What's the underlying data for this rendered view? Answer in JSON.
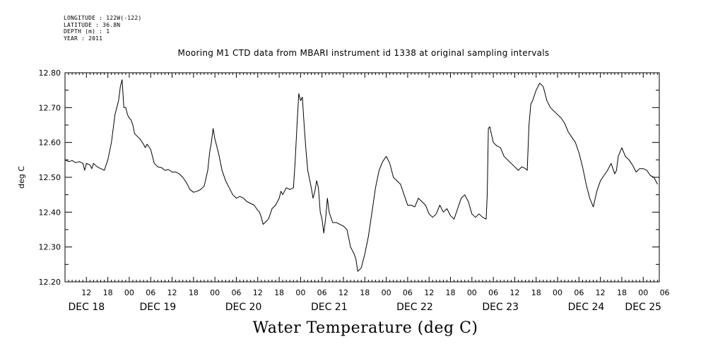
{
  "header": {
    "longitude": "LONGITUDE : 122W(-122)",
    "latitude": "LATITUDE : 36.8N",
    "depth": "DEPTH (m) : 1",
    "year": "YEAR : 2011"
  },
  "chart_data": {
    "type": "line",
    "title": "Mooring M1 CTD data from MBARI instrument id 1338 at original sampling intervals",
    "xlabel": "Water Temperature (deg C)",
    "ylabel": "deg C",
    "ylim": [
      12.2,
      12.8
    ],
    "xlim": [
      6,
      172.5
    ],
    "y_ticks": [
      "12.20",
      "12.30",
      "12.40",
      "12.50",
      "12.60",
      "12.70",
      "12.80"
    ],
    "hour_ticks": [
      {
        "h": 12,
        "label": "12"
      },
      {
        "h": 18,
        "label": "18"
      },
      {
        "h": 24,
        "label": "00"
      },
      {
        "h": 30,
        "label": "06"
      },
      {
        "h": 36,
        "label": "12"
      },
      {
        "h": 42,
        "label": "18"
      },
      {
        "h": 48,
        "label": "00"
      },
      {
        "h": 54,
        "label": "06"
      },
      {
        "h": 60,
        "label": "12"
      },
      {
        "h": 66,
        "label": "18"
      },
      {
        "h": 72,
        "label": "00"
      },
      {
        "h": 78,
        "label": "06"
      },
      {
        "h": 84,
        "label": "12"
      },
      {
        "h": 90,
        "label": "18"
      },
      {
        "h": 96,
        "label": "00"
      },
      {
        "h": 102,
        "label": "06"
      },
      {
        "h": 108,
        "label": "12"
      },
      {
        "h": 114,
        "label": "18"
      },
      {
        "h": 120,
        "label": "00"
      },
      {
        "h": 126,
        "label": "06"
      },
      {
        "h": 132,
        "label": "12"
      },
      {
        "h": 138,
        "label": "18"
      },
      {
        "h": 144,
        "label": "00"
      },
      {
        "h": 150,
        "label": "06"
      },
      {
        "h": 156,
        "label": "12"
      },
      {
        "h": 162,
        "label": "18"
      },
      {
        "h": 168,
        "label": "00"
      },
      {
        "h": 174,
        "label": "06"
      }
    ],
    "date_labels": [
      {
        "h": 12,
        "label": "DEC 18"
      },
      {
        "h": 32,
        "label": "DEC 19"
      },
      {
        "h": 56,
        "label": "DEC 20"
      },
      {
        "h": 80,
        "label": "DEC 21"
      },
      {
        "h": 104,
        "label": "DEC 22"
      },
      {
        "h": 128,
        "label": "DEC 23"
      },
      {
        "h": 152,
        "label": "DEC 24"
      },
      {
        "h": 168,
        "label": "DEC 25"
      }
    ],
    "series": [
      {
        "points": [
          [
            6.0,
            12.55
          ],
          [
            7.0,
            12.545
          ],
          [
            8.0,
            12.548
          ],
          [
            9.0,
            12.542
          ],
          [
            10.0,
            12.545
          ],
          [
            11.0,
            12.54
          ],
          [
            11.5,
            12.52
          ],
          [
            12.0,
            12.54
          ],
          [
            13.0,
            12.535
          ],
          [
            13.5,
            12.525
          ],
          [
            14.0,
            12.54
          ],
          [
            15.0,
            12.53
          ],
          [
            16.0,
            12.525
          ],
          [
            17.0,
            12.52
          ],
          [
            18.0,
            12.55
          ],
          [
            19.0,
            12.6
          ],
          [
            20.0,
            12.68
          ],
          [
            21.0,
            12.72
          ],
          [
            21.5,
            12.76
          ],
          [
            22.0,
            12.78
          ],
          [
            22.5,
            12.7
          ],
          [
            23.0,
            12.7
          ],
          [
            23.5,
            12.68
          ],
          [
            24.0,
            12.67
          ],
          [
            24.5,
            12.665
          ],
          [
            25.0,
            12.65
          ],
          [
            25.5,
            12.625
          ],
          [
            26.0,
            12.62
          ],
          [
            27.0,
            12.61
          ],
          [
            28.0,
            12.595
          ],
          [
            28.5,
            12.585
          ],
          [
            29.0,
            12.595
          ],
          [
            30.0,
            12.58
          ],
          [
            31.0,
            12.54
          ],
          [
            32.0,
            12.53
          ],
          [
            33.0,
            12.528
          ],
          [
            34.0,
            12.52
          ],
          [
            35.0,
            12.522
          ],
          [
            36.0,
            12.515
          ],
          [
            37.0,
            12.515
          ],
          [
            38.0,
            12.51
          ],
          [
            39.0,
            12.5
          ],
          [
            40.0,
            12.485
          ],
          [
            41.0,
            12.465
          ],
          [
            42.0,
            12.457
          ],
          [
            43.0,
            12.46
          ],
          [
            44.0,
            12.465
          ],
          [
            45.0,
            12.475
          ],
          [
            46.0,
            12.52
          ],
          [
            46.5,
            12.57
          ],
          [
            47.0,
            12.6
          ],
          [
            47.5,
            12.64
          ],
          [
            48.0,
            12.61
          ],
          [
            49.0,
            12.57
          ],
          [
            50.0,
            12.52
          ],
          [
            51.0,
            12.49
          ],
          [
            52.0,
            12.47
          ],
          [
            53.0,
            12.45
          ],
          [
            54.0,
            12.44
          ],
          [
            55.0,
            12.445
          ],
          [
            56.0,
            12.44
          ],
          [
            57.0,
            12.43
          ],
          [
            58.0,
            12.425
          ],
          [
            59.0,
            12.42
          ],
          [
            60.0,
            12.405
          ],
          [
            60.5,
            12.4
          ],
          [
            61.0,
            12.385
          ],
          [
            61.5,
            12.365
          ],
          [
            62.0,
            12.37
          ],
          [
            63.0,
            12.38
          ],
          [
            64.0,
            12.41
          ],
          [
            65.0,
            12.42
          ],
          [
            66.0,
            12.44
          ],
          [
            66.5,
            12.46
          ],
          [
            67.0,
            12.45
          ],
          [
            68.0,
            12.47
          ],
          [
            69.0,
            12.465
          ],
          [
            70.0,
            12.47
          ],
          [
            70.5,
            12.55
          ],
          [
            71.0,
            12.65
          ],
          [
            71.5,
            12.74
          ],
          [
            72.0,
            12.72
          ],
          [
            72.5,
            12.73
          ],
          [
            73.0,
            12.65
          ],
          [
            73.5,
            12.58
          ],
          [
            74.0,
            12.52
          ],
          [
            75.0,
            12.47
          ],
          [
            75.5,
            12.44
          ],
          [
            76.0,
            12.46
          ],
          [
            76.5,
            12.49
          ],
          [
            77.0,
            12.47
          ],
          [
            77.5,
            12.4
          ],
          [
            78.0,
            12.38
          ],
          [
            78.5,
            12.34
          ],
          [
            79.0,
            12.38
          ],
          [
            79.5,
            12.44
          ],
          [
            80.0,
            12.4
          ],
          [
            81.0,
            12.37
          ],
          [
            82.0,
            12.37
          ],
          [
            83.0,
            12.365
          ],
          [
            84.0,
            12.36
          ],
          [
            85.0,
            12.35
          ],
          [
            86.0,
            12.3
          ],
          [
            87.0,
            12.28
          ],
          [
            87.5,
            12.265
          ],
          [
            88.0,
            12.23
          ],
          [
            89.0,
            12.24
          ],
          [
            90.0,
            12.28
          ],
          [
            91.0,
            12.33
          ],
          [
            92.0,
            12.4
          ],
          [
            93.0,
            12.47
          ],
          [
            94.0,
            12.52
          ],
          [
            95.0,
            12.545
          ],
          [
            96.0,
            12.56
          ],
          [
            97.0,
            12.54
          ],
          [
            98.0,
            12.5
          ],
          [
            99.0,
            12.49
          ],
          [
            100.0,
            12.48
          ],
          [
            101.0,
            12.45
          ],
          [
            102.0,
            12.42
          ],
          [
            103.0,
            12.42
          ],
          [
            104.0,
            12.415
          ],
          [
            105.0,
            12.44
          ],
          [
            106.0,
            12.43
          ],
          [
            107.0,
            12.42
          ],
          [
            108.0,
            12.395
          ],
          [
            109.0,
            12.385
          ],
          [
            110.0,
            12.395
          ],
          [
            111.0,
            12.42
          ],
          [
            112.0,
            12.4
          ],
          [
            113.0,
            12.41
          ],
          [
            114.0,
            12.39
          ],
          [
            115.0,
            12.38
          ],
          [
            116.0,
            12.41
          ],
          [
            117.0,
            12.44
          ],
          [
            118.0,
            12.45
          ],
          [
            119.0,
            12.43
          ],
          [
            120.0,
            12.395
          ],
          [
            121.0,
            12.385
          ],
          [
            122.0,
            12.395
          ],
          [
            123.0,
            12.385
          ],
          [
            124.0,
            12.38
          ],
          [
            124.3,
            12.45
          ],
          [
            124.6,
            12.64
          ],
          [
            125.0,
            12.645
          ],
          [
            126.0,
            12.6
          ],
          [
            127.0,
            12.59
          ],
          [
            128.0,
            12.585
          ],
          [
            129.0,
            12.56
          ],
          [
            130.0,
            12.55
          ],
          [
            131.0,
            12.54
          ],
          [
            132.0,
            12.53
          ],
          [
            133.0,
            12.52
          ],
          [
            134.0,
            12.53
          ],
          [
            135.0,
            12.525
          ],
          [
            135.5,
            12.52
          ],
          [
            136.0,
            12.65
          ],
          [
            136.5,
            12.71
          ],
          [
            137.0,
            12.72
          ],
          [
            138.0,
            12.75
          ],
          [
            139.0,
            12.77
          ],
          [
            140.0,
            12.76
          ],
          [
            141.0,
            12.72
          ],
          [
            142.0,
            12.7
          ],
          [
            143.0,
            12.69
          ],
          [
            144.0,
            12.68
          ],
          [
            145.0,
            12.67
          ],
          [
            146.0,
            12.655
          ],
          [
            147.0,
            12.63
          ],
          [
            148.0,
            12.615
          ],
          [
            149.0,
            12.6
          ],
          [
            150.0,
            12.57
          ],
          [
            151.0,
            12.53
          ],
          [
            152.0,
            12.48
          ],
          [
            153.0,
            12.44
          ],
          [
            154.0,
            12.415
          ],
          [
            155.0,
            12.46
          ],
          [
            156.0,
            12.49
          ],
          [
            157.0,
            12.505
          ],
          [
            158.0,
            12.52
          ],
          [
            159.0,
            12.54
          ],
          [
            160.0,
            12.51
          ],
          [
            160.5,
            12.52
          ],
          [
            161.0,
            12.56
          ],
          [
            162.0,
            12.585
          ],
          [
            163.0,
            12.56
          ],
          [
            164.0,
            12.55
          ],
          [
            165.0,
            12.535
          ],
          [
            166.0,
            12.515
          ],
          [
            167.0,
            12.525
          ],
          [
            168.0,
            12.525
          ],
          [
            169.0,
            12.52
          ],
          [
            170.0,
            12.505
          ],
          [
            171.0,
            12.5
          ],
          [
            172.0,
            12.48
          ]
        ]
      }
    ]
  }
}
